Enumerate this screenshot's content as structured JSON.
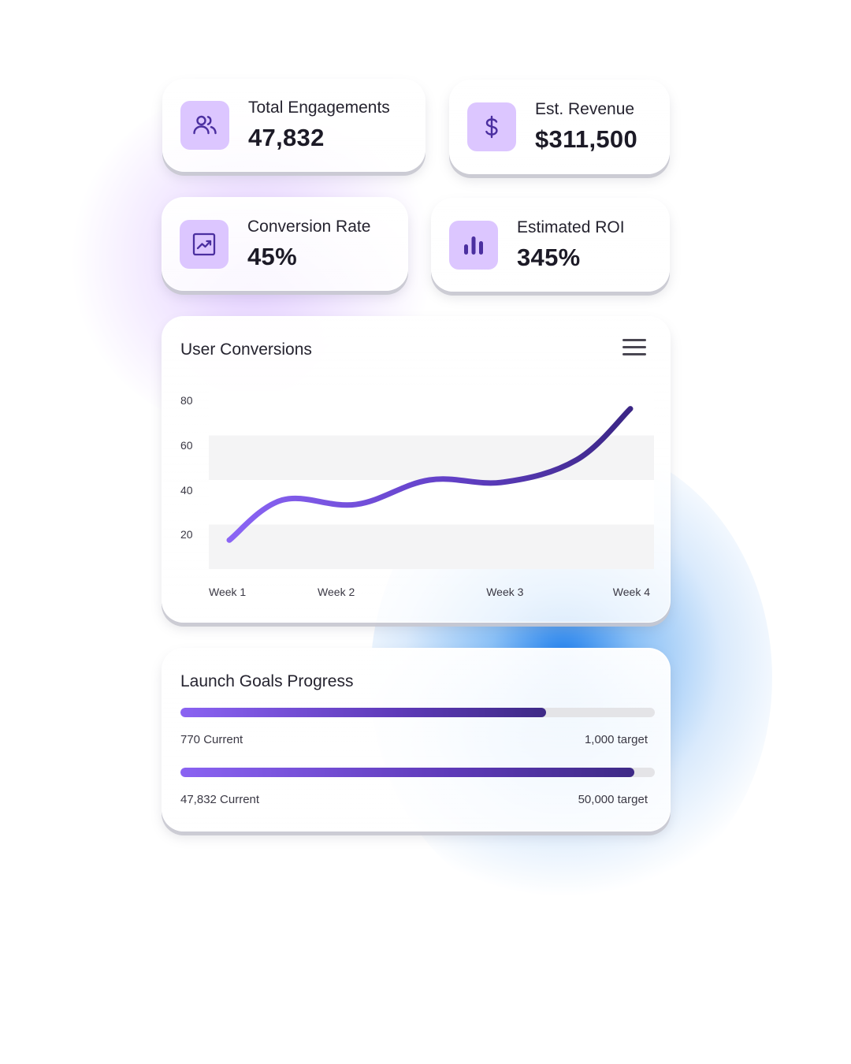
{
  "stats": {
    "engagements": {
      "label": "Total Engagements",
      "value": "47,832",
      "icon": "users-icon"
    },
    "revenue": {
      "label": "Est. Revenue",
      "value": "$311,500",
      "icon": "dollar-icon"
    },
    "conversion": {
      "label": "Conversion Rate",
      "value": "45%",
      "icon": "trend-chart-icon"
    },
    "roi": {
      "label": "Estimated ROI",
      "value": "345%",
      "icon": "bar-chart-icon"
    }
  },
  "chart_card": {
    "title": "User Conversions",
    "menu_icon": "hamburger-menu-icon"
  },
  "chart_data": {
    "type": "line",
    "title": "User Conversions",
    "x_ticks": [
      "Week 1",
      "Week 2",
      "Week 3",
      "Week 4"
    ],
    "y_ticks": [
      "80",
      "60",
      "40",
      "20"
    ],
    "ylim": [
      0,
      80
    ],
    "xlim": [
      1,
      4
    ],
    "grid": "alternating horizontal bands",
    "series": [
      {
        "x": [
          1,
          1.5,
          2,
          2.5,
          3,
          3.5,
          4
        ],
        "values": [
          13,
          31,
          29,
          40,
          39,
          49,
          72
        ]
      }
    ],
    "colors": {
      "line_start": "#8b65f5",
      "line_end": "#3b2685",
      "band": "#f4f4f5"
    }
  },
  "goals": {
    "title": "Launch Goals Progress",
    "items": [
      {
        "current_label": "770 Current",
        "target_label": "1,000 target",
        "progress": 0.77
      },
      {
        "current_label": "47,832 Current",
        "target_label": "50,000 target",
        "progress": 0.9566
      }
    ]
  },
  "colors": {
    "accent": "#6a46d6",
    "icon_bg": "#dcc6ff",
    "glow_purple": "#c9a8ff",
    "glow_blue": "#1478eb"
  }
}
